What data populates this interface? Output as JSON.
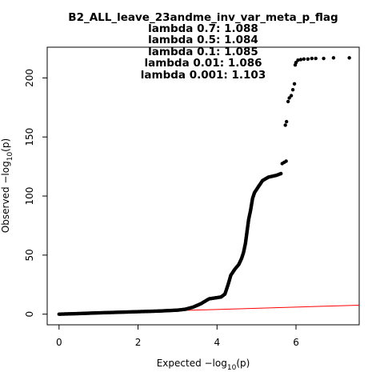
{
  "chart_data": {
    "type": "scatter",
    "title": "B2_ALL_leave_23andme_inv_var_meta_p_flag",
    "subtitle_lines": [
      "lambda 0.7: 1.088",
      "lambda 0.5: 1.084",
      "lambda 0.1: 1.085",
      "lambda 0.01: 1.086",
      "lambda 0.001: 1.103"
    ],
    "xlabel_prefix": "Expected  −log",
    "xlabel_sub": "10",
    "xlabel_suffix": "(p)",
    "ylabel_prefix": "Observed  −log",
    "ylabel_sub": "10",
    "ylabel_suffix": "(p)",
    "xlim": [
      -0.3,
      7.6
    ],
    "ylim": [
      -9,
      226
    ],
    "x_ticks": [
      0,
      2,
      4,
      6
    ],
    "y_ticks": [
      0,
      50,
      100,
      150,
      200
    ],
    "reference_line": {
      "from": [
        0,
        0
      ],
      "to": [
        7.6,
        7.6
      ],
      "color": "#ff0000"
    },
    "point_color": "#000000",
    "curve_points": [
      [
        0.0,
        0.0
      ],
      [
        0.5,
        0.5
      ],
      [
        1.0,
        1.1
      ],
      [
        1.5,
        1.6
      ],
      [
        2.0,
        2.1
      ],
      [
        2.5,
        2.6
      ],
      [
        3.0,
        3.4
      ],
      [
        3.2,
        4.2
      ],
      [
        3.4,
        6.0
      ],
      [
        3.6,
        9.0
      ],
      [
        3.8,
        13.0
      ],
      [
        4.0,
        14.0
      ],
      [
        4.1,
        14.5
      ],
      [
        4.2,
        17.0
      ],
      [
        4.28,
        25.0
      ],
      [
        4.35,
        33.0
      ],
      [
        4.45,
        38.0
      ],
      [
        4.55,
        42.0
      ],
      [
        4.62,
        47.0
      ],
      [
        4.67,
        52.0
      ],
      [
        4.72,
        60.0
      ],
      [
        4.76,
        70.0
      ],
      [
        4.8,
        80.0
      ],
      [
        4.85,
        88.0
      ],
      [
        4.9,
        98.0
      ],
      [
        4.95,
        103.0
      ],
      [
        5.05,
        108.0
      ],
      [
        5.15,
        113.0
      ],
      [
        5.3,
        116.0
      ],
      [
        5.5,
        117.5
      ],
      [
        5.62,
        119.0
      ]
    ],
    "sparse_points": [
      [
        5.65,
        127.5
      ],
      [
        5.7,
        128.5
      ],
      [
        5.75,
        129.5
      ],
      [
        5.73,
        160.0
      ],
      [
        5.76,
        163.0
      ],
      [
        5.8,
        180.0
      ],
      [
        5.83,
        183.0
      ],
      [
        5.88,
        185.0
      ],
      [
        5.92,
        190.0
      ],
      [
        5.96,
        195.0
      ],
      [
        5.98,
        211.0
      ],
      [
        6.0,
        213.0
      ],
      [
        6.05,
        215.0
      ],
      [
        6.12,
        215.5
      ],
      [
        6.2,
        216.0
      ],
      [
        6.3,
        216.0
      ],
      [
        6.4,
        216.5
      ],
      [
        6.5,
        216.5
      ],
      [
        6.7,
        216.5
      ],
      [
        6.95,
        217.0
      ],
      [
        7.35,
        217.0
      ]
    ]
  }
}
